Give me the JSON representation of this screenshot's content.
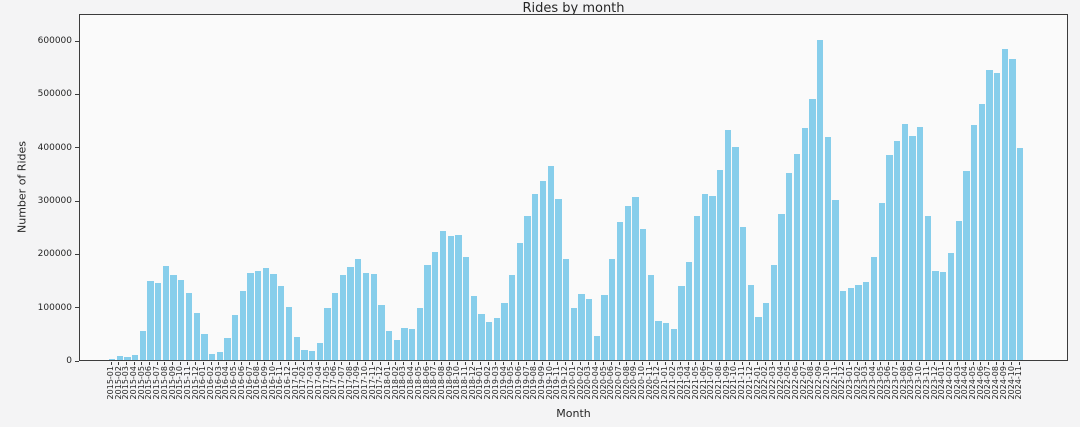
{
  "title": "Rides by month",
  "colors": {
    "figure_background": "#f4f4f5",
    "plot_background": "#fafafa",
    "bar": "#87ceeb",
    "frame": "#3c3c3c",
    "text": "#262626"
  },
  "chart_data": {
    "type": "bar",
    "title": "Rides by month",
    "xlabel": "Month",
    "ylabel": "Number of Rides",
    "ylim": [
      0,
      651000
    ],
    "yticks": [
      0,
      100000,
      200000,
      300000,
      400000,
      500000,
      600000
    ],
    "grid": false,
    "legend": "none",
    "bar_color": "#87ceeb",
    "categories": [
      "2015-01",
      "2015-02",
      "2015-03",
      "2015-04",
      "2015-05",
      "2015-06",
      "2015-07",
      "2015-08",
      "2015-09",
      "2015-10",
      "2015-11",
      "2015-12",
      "2016-01",
      "2016-02",
      "2016-03",
      "2016-04",
      "2016-05",
      "2016-06",
      "2016-07",
      "2016-08",
      "2016-09",
      "2016-10",
      "2016-11",
      "2016-12",
      "2017-01",
      "2017-02",
      "2017-03",
      "2017-04",
      "2017-05",
      "2017-06",
      "2017-07",
      "2017-08",
      "2017-09",
      "2017-10",
      "2017-11",
      "2017-12",
      "2018-01",
      "2018-02",
      "2018-03",
      "2018-04",
      "2018-05",
      "2018-06",
      "2018-07",
      "2018-08",
      "2018-09",
      "2018-10",
      "2018-11",
      "2018-12",
      "2019-01",
      "2019-02",
      "2019-03",
      "2019-04",
      "2019-05",
      "2019-06",
      "2019-07",
      "2019-08",
      "2019-09",
      "2019-10",
      "2019-11",
      "2019-12",
      "2020-01",
      "2020-02",
      "2020-03",
      "2020-04",
      "2020-05",
      "2020-06",
      "2020-07",
      "2020-08",
      "2020-09",
      "2020-10",
      "2020-11",
      "2020-12",
      "2021-01",
      "2021-02",
      "2021-03",
      "2021-04",
      "2021-05",
      "2021-06",
      "2021-07",
      "2021-08",
      "2021-09",
      "2021-10",
      "2021-11",
      "2021-12",
      "2022-01",
      "2022-02",
      "2022-03",
      "2022-04",
      "2022-05",
      "2022-06",
      "2022-07",
      "2022-08",
      "2022-09",
      "2022-10",
      "2022-11",
      "2022-12",
      "2023-01",
      "2023-02",
      "2023-03",
      "2023-04",
      "2023-05",
      "2023-06",
      "2023-07",
      "2023-08",
      "2023-09",
      "2023-10",
      "2023-11",
      "2023-12",
      "2024-01",
      "2024-02",
      "2024-03",
      "2024-04",
      "2024-05",
      "2024-06",
      "2024-07",
      "2024-08",
      "2024-09",
      "2024-10",
      "2024-11"
    ],
    "values": [
      2000,
      7000,
      5000,
      10000,
      55000,
      148000,
      144000,
      176000,
      159000,
      150000,
      126000,
      89000,
      48000,
      12000,
      15000,
      41000,
      84000,
      129000,
      164000,
      167000,
      173000,
      162000,
      139000,
      99000,
      43000,
      19000,
      16000,
      31000,
      98000,
      125000,
      159000,
      174000,
      189000,
      164000,
      162000,
      104000,
      54000,
      38000,
      60000,
      58000,
      97000,
      178000,
      203000,
      242000,
      233000,
      234000,
      193000,
      120000,
      86000,
      72000,
      79000,
      107000,
      160000,
      220000,
      270000,
      312000,
      335000,
      364000,
      303000,
      190000,
      97000,
      124000,
      115000,
      45000,
      122000,
      190000,
      259000,
      289000,
      306000,
      246000,
      159000,
      73000,
      69000,
      58000,
      139000,
      184000,
      270000,
      312000,
      308000,
      357000,
      432000,
      399000,
      250000,
      141000,
      81000,
      107000,
      179000,
      273000,
      350000,
      387000,
      435000,
      489000,
      601000,
      419000,
      300000,
      130000,
      135000,
      140000,
      147000,
      194000,
      295000,
      385000,
      411000,
      442000,
      420000,
      437000,
      270000,
      167000,
      165000,
      200000,
      260000,
      354000,
      440000,
      481000,
      544000,
      539000,
      584000,
      565000,
      398000
    ]
  }
}
